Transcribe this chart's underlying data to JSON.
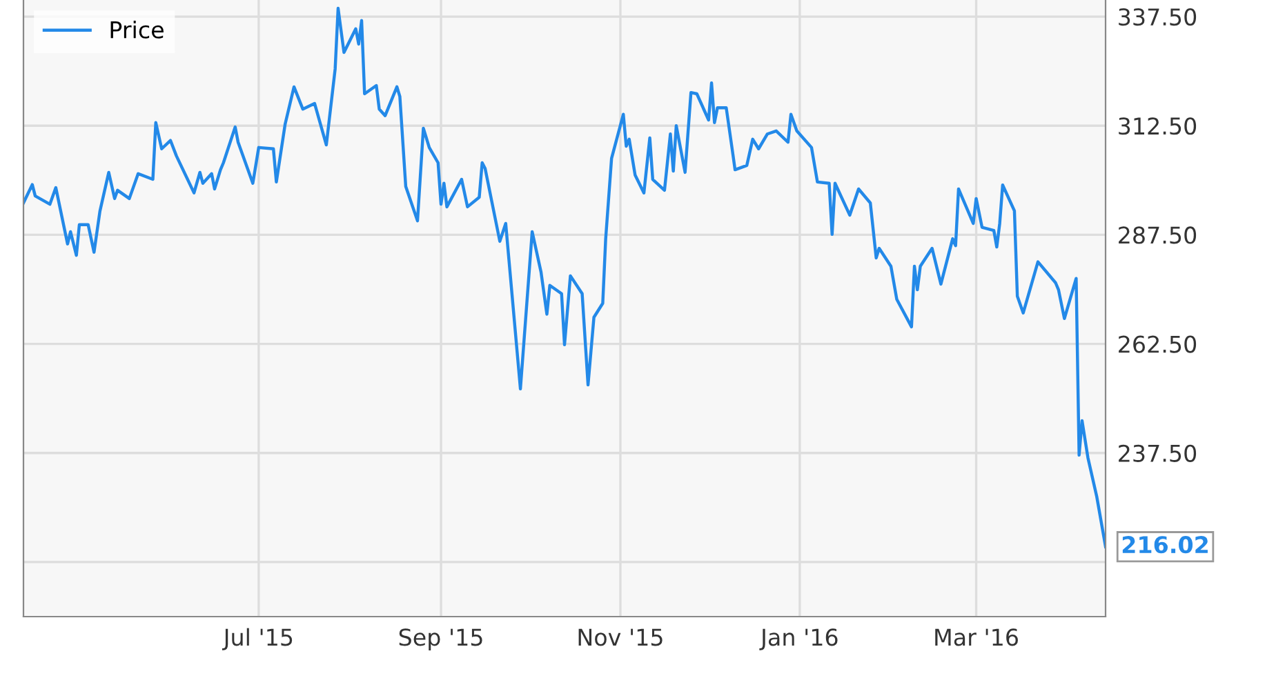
{
  "chart_data": {
    "type": "line",
    "legend": "top left",
    "grid": true,
    "marker": "none",
    "line_style": "solid",
    "xlim": [
      "2015-04-12",
      "2016-04-14"
    ],
    "ylim": [
      200,
      341.3
    ],
    "xticks": [
      {
        "value": "2015-07-01",
        "label": "Jul '15"
      },
      {
        "value": "2015-09-01",
        "label": "Sep '15"
      },
      {
        "value": "2015-11-01",
        "label": "Nov '15"
      },
      {
        "value": "2016-01-01",
        "label": "Jan '16"
      },
      {
        "value": "2016-03-01",
        "label": "Mar '16"
      }
    ],
    "yticks": [
      {
        "value": 212.5,
        "label": null
      },
      {
        "value": 237.5,
        "label": "237.50"
      },
      {
        "value": 262.5,
        "label": "262.50"
      },
      {
        "value": 287.5,
        "label": "287.50"
      },
      {
        "value": 312.5,
        "label": "312.50"
      },
      {
        "value": 337.5,
        "label": "337.50"
      }
    ],
    "annotations": [
      {
        "text": "216.02",
        "x": "2016-04-14",
        "y": 216.02
      }
    ],
    "series": [
      {
        "name": "Price",
        "color": "#2389e8",
        "x": [
          "2015-04-12",
          "2015-04-15",
          "2015-04-16",
          "2015-04-21",
          "2015-04-23",
          "2015-04-27",
          "2015-04-28",
          "2015-04-30",
          "2015-05-01",
          "2015-05-04",
          "2015-05-06",
          "2015-05-08",
          "2015-05-11",
          "2015-05-13",
          "2015-05-14",
          "2015-05-18",
          "2015-05-21",
          "2015-05-26",
          "2015-05-27",
          "2015-05-29",
          "2015-06-01",
          "2015-06-03",
          "2015-06-09",
          "2015-06-11",
          "2015-06-12",
          "2015-06-15",
          "2015-06-16",
          "2015-06-18",
          "2015-06-19",
          "2015-06-23",
          "2015-06-24",
          "2015-06-29",
          "2015-07-01",
          "2015-07-06",
          "2015-07-07",
          "2015-07-10",
          "2015-07-13",
          "2015-07-16",
          "2015-07-20",
          "2015-07-24",
          "2015-07-27",
          "2015-07-28",
          "2015-07-30",
          "2015-08-03",
          "2015-08-04",
          "2015-08-05",
          "2015-08-06",
          "2015-08-10",
          "2015-08-11",
          "2015-08-13",
          "2015-08-17",
          "2015-08-18",
          "2015-08-20",
          "2015-08-24",
          "2015-08-26",
          "2015-08-28",
          "2015-08-31",
          "2015-09-01",
          "2015-09-02",
          "2015-09-03",
          "2015-09-08",
          "2015-09-10",
          "2015-09-14",
          "2015-09-15",
          "2015-09-16",
          "2015-09-21",
          "2015-09-23",
          "2015-09-28",
          "2015-10-02",
          "2015-10-05",
          "2015-10-07",
          "2015-10-08",
          "2015-10-12",
          "2015-10-13",
          "2015-10-15",
          "2015-10-19",
          "2015-10-21",
          "2015-10-23",
          "2015-10-26",
          "2015-10-27",
          "2015-10-29",
          "2015-11-02",
          "2015-11-03",
          "2015-11-04",
          "2015-11-06",
          "2015-11-09",
          "2015-11-11",
          "2015-11-12",
          "2015-11-16",
          "2015-11-18",
          "2015-11-19",
          "2015-11-20",
          "2015-11-23",
          "2015-11-25",
          "2015-11-27",
          "2015-12-01",
          "2015-12-02",
          "2015-12-03",
          "2015-12-04",
          "2015-12-07",
          "2015-12-09",
          "2015-12-10",
          "2015-12-14",
          "2015-12-16",
          "2015-12-18",
          "2015-12-21",
          "2015-12-24",
          "2015-12-28",
          "2015-12-29",
          "2015-12-31",
          "2016-01-05",
          "2016-01-07",
          "2016-01-11",
          "2016-01-12",
          "2016-01-13",
          "2016-01-18",
          "2016-01-21",
          "2016-01-25",
          "2016-01-27",
          "2016-01-28",
          "2016-02-01",
          "2016-02-03",
          "2016-02-08",
          "2016-02-09",
          "2016-02-10",
          "2016-02-11",
          "2016-02-15",
          "2016-02-18",
          "2016-02-22",
          "2016-02-23",
          "2016-02-24",
          "2016-02-29",
          "2016-03-01",
          "2016-03-03",
          "2016-03-07",
          "2016-03-08",
          "2016-03-09",
          "2016-03-10",
          "2016-03-14",
          "2016-03-15",
          "2016-03-17",
          "2016-03-22",
          "2016-03-28",
          "2016-03-29",
          "2016-03-31",
          "2016-04-04",
          "2016-04-05",
          "2016-04-06",
          "2016-04-08",
          "2016-04-11",
          "2016-04-14"
        ],
        "values": [
          294.8,
          299,
          296.4,
          294.5,
          298.3,
          285.4,
          288.2,
          282.8,
          289.8,
          289.8,
          283.5,
          292.9,
          301.8,
          295.8,
          297.7,
          295.8,
          301.5,
          300.2,
          313.2,
          307.2,
          309.1,
          305.6,
          297.1,
          301.8,
          299.3,
          301.5,
          298,
          302.4,
          304,
          312.2,
          308.7,
          299.3,
          307.5,
          307.2,
          299.6,
          312.9,
          321.4,
          316.3,
          317.6,
          308.1,
          325.5,
          339.4,
          329.3,
          334.7,
          331.2,
          336.6,
          319.8,
          321.7,
          316.3,
          314.8,
          321.4,
          319.2,
          298.6,
          290.7,
          311.9,
          307.5,
          304,
          294.5,
          299.3,
          293.9,
          300.2,
          293.9,
          296.1,
          304,
          302.7,
          286,
          290.1,
          252.2,
          288.2,
          279,
          269.3,
          275.9,
          274,
          262.3,
          278.1,
          274,
          253.1,
          268.6,
          271.8,
          286.6,
          305,
          315.1,
          307.8,
          309.4,
          301.2,
          297.1,
          309.7,
          300.2,
          297.7,
          310.6,
          302.1,
          312.5,
          301.8,
          320.1,
          319.8,
          313.8,
          322.3,
          313.2,
          316.6,
          316.6,
          307.2,
          302.4,
          303.4,
          309.4,
          307.2,
          310.6,
          311.3,
          308.7,
          315.1,
          311.3,
          307.5,
          299.6,
          299.3,
          287.6,
          299.3,
          292,
          298,
          294.8,
          282.2,
          284.4,
          280.3,
          272.7,
          266.4,
          280.3,
          274.9,
          280.3,
          284.4,
          276.2,
          286.6,
          285,
          298,
          290.1,
          295.8,
          289.2,
          288.5,
          284.7,
          290.1,
          298.9,
          293,
          273.4,
          269.6,
          281.3,
          276.5,
          274.9,
          268.3,
          277.5,
          237,
          244.9,
          236.4,
          227.5,
          216.02
        ]
      }
    ]
  }
}
